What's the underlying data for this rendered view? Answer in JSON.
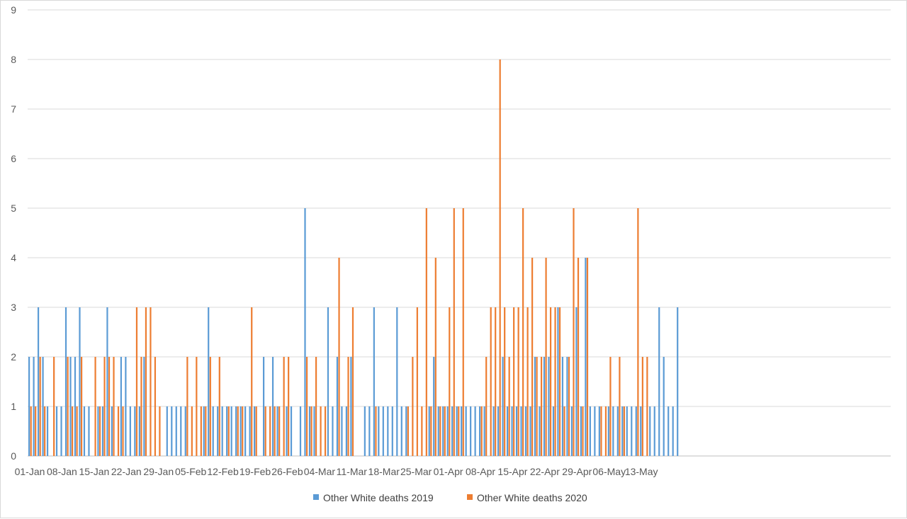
{
  "chart_data": {
    "type": "bar",
    "title": "",
    "xlabel": "",
    "ylabel": "",
    "ylim": [
      0,
      9
    ],
    "y_ticks": [
      "0",
      "1",
      "2",
      "3",
      "4",
      "5",
      "6",
      "7",
      "8",
      "9"
    ],
    "grid": "horizontal",
    "legend_position": "bottom",
    "x_tick_labels": [
      "01-Jan",
      "08-Jan",
      "15-Jan",
      "22-Jan",
      "29-Jan",
      "05-Feb",
      "12-Feb",
      "19-Feb",
      "26-Feb",
      "04-Mar",
      "11-Mar",
      "18-Mar",
      "25-Mar",
      "01-Apr",
      "08-Apr",
      "15-Apr",
      "22-Apr",
      "29-Apr",
      "06-May",
      "13-May"
    ],
    "x_start": "01-Jan",
    "x_end": "14-May",
    "series": [
      {
        "name": "Other White deaths 2019",
        "color": "#5b9bd5",
        "values": [
          2,
          2,
          3,
          2,
          1,
          0,
          1,
          1,
          3,
          2,
          2,
          3,
          1,
          1,
          0,
          1,
          1,
          3,
          1,
          0,
          2,
          2,
          1,
          1,
          1,
          2,
          0,
          0,
          0,
          0,
          1,
          1,
          1,
          1,
          1,
          0,
          0,
          0,
          1,
          3,
          1,
          1,
          1,
          1,
          1,
          1,
          1,
          1,
          1,
          1,
          0,
          2,
          0,
          2,
          1,
          0,
          1,
          1,
          0,
          1,
          5,
          1,
          1,
          0,
          0,
          3,
          1,
          2,
          1,
          1,
          2,
          0,
          0,
          1,
          1,
          3,
          1,
          1,
          1,
          1,
          3,
          1,
          1,
          0,
          0,
          0,
          0,
          1,
          2,
          1,
          1,
          1,
          1,
          1,
          1,
          1,
          1,
          1,
          1,
          1,
          0,
          1,
          1,
          2,
          1,
          1,
          1,
          1,
          1,
          1,
          2,
          1,
          2,
          2,
          1,
          3,
          2,
          2,
          1,
          3,
          1,
          4,
          1,
          1,
          1,
          0,
          1,
          1,
          1,
          1,
          1,
          1,
          1,
          1,
          0,
          1,
          1,
          3,
          2,
          1,
          1,
          3
        ]
      },
      {
        "name": "Other White deaths 2020",
        "color": "#ed7d31",
        "values": [
          1,
          1,
          2,
          1,
          0,
          2,
          0,
          0,
          2,
          1,
          1,
          2,
          0,
          0,
          2,
          1,
          2,
          2,
          2,
          1,
          1,
          0,
          0,
          3,
          2,
          3,
          3,
          2,
          1,
          0,
          0,
          0,
          0,
          0,
          2,
          1,
          2,
          1,
          1,
          2,
          0,
          2,
          0,
          1,
          0,
          1,
          1,
          0,
          3,
          1,
          0,
          1,
          1,
          1,
          1,
          2,
          2,
          0,
          0,
          0,
          2,
          1,
          2,
          1,
          1,
          0,
          0,
          4,
          0,
          2,
          3,
          0,
          0,
          0,
          0,
          1,
          0,
          0,
          0,
          0,
          0,
          0,
          1,
          2,
          3,
          1,
          5,
          1,
          4,
          1,
          1,
          3,
          5,
          1,
          5,
          0,
          0,
          0,
          1,
          2,
          3,
          3,
          8,
          3,
          2,
          3,
          3,
          5,
          3,
          4,
          2,
          2,
          4,
          3,
          3,
          3,
          1,
          2,
          5,
          4,
          1,
          4,
          0,
          0,
          1,
          1,
          2,
          0,
          2,
          1,
          0,
          0,
          5,
          2,
          2,
          0,
          0,
          0,
          0,
          0,
          0,
          0
        ]
      }
    ]
  }
}
